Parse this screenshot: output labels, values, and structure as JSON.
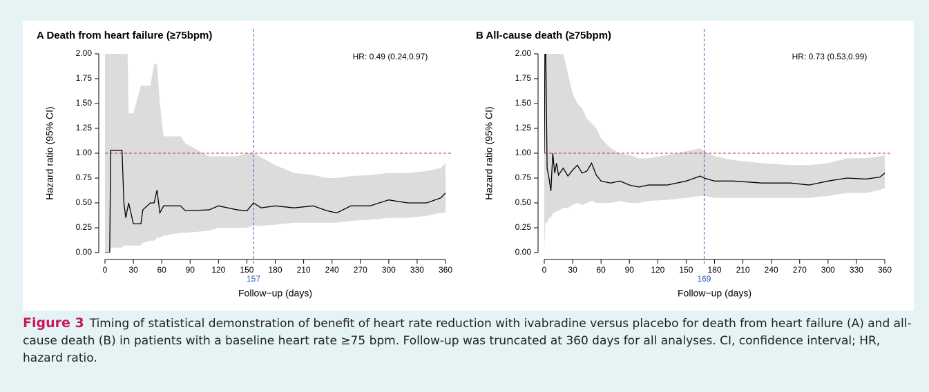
{
  "chart_data": [
    {
      "type": "line",
      "title": "A Death from heart failure (≥75bpm)",
      "annotation": "HR: 0.49 (0.24,0.97)",
      "x_label": "Follow−up (days)",
      "y_label": "Hazard ratio (95% CI)",
      "xlim": [
        0,
        360
      ],
      "ylim": [
        0,
        2
      ],
      "xticks": [
        0,
        30,
        60,
        90,
        120,
        150,
        180,
        210,
        240,
        270,
        300,
        330,
        360
      ],
      "yticks": [
        {
          "value": 0,
          "label": "0.00"
        },
        {
          "value": 0.25,
          "label": "0.25"
        },
        {
          "value": 0.5,
          "label": "0.50"
        },
        {
          "value": 0.75,
          "label": "0.75"
        },
        {
          "value": 1,
          "label": "1.00"
        },
        {
          "value": 1.25,
          "label": "1.25"
        },
        {
          "value": 1.5,
          "label": "1.50"
        },
        {
          "value": 1.75,
          "label": "1.75"
        },
        {
          "value": 2,
          "label": "2.00"
        }
      ],
      "ref_line": 1,
      "marker": 157,
      "color": "#000000",
      "band_color": "#dcdcdc",
      "ref_color": "#d22b2b",
      "marker_color": "#3a5bb8",
      "x": [
        0,
        5,
        6,
        18,
        20,
        22,
        25,
        30,
        38,
        40,
        48,
        52,
        55,
        58,
        62,
        80,
        85,
        110,
        120,
        140,
        150,
        157,
        165,
        180,
        200,
        220,
        235,
        245,
        260,
        280,
        300,
        320,
        340,
        355,
        360
      ],
      "values": [
        0,
        0,
        1.03,
        1.03,
        0.5,
        0.35,
        0.5,
        0.29,
        0.29,
        0.43,
        0.5,
        0.5,
        0.63,
        0.4,
        0.47,
        0.47,
        0.42,
        0.43,
        0.47,
        0.43,
        0.42,
        0.5,
        0.45,
        0.47,
        0.45,
        0.47,
        0.42,
        0.4,
        0.47,
        0.47,
        0.53,
        0.5,
        0.5,
        0.55,
        0.6
      ],
      "ci_lower": [
        0,
        0,
        0.05,
        0.05,
        0.07,
        0.07,
        0.07,
        0.07,
        0.07,
        0.1,
        0.12,
        0.12,
        0.15,
        0.15,
        0.17,
        0.2,
        0.2,
        0.22,
        0.25,
        0.25,
        0.25,
        0.27,
        0.27,
        0.28,
        0.3,
        0.3,
        0.3,
        0.3,
        0.32,
        0.33,
        0.35,
        0.35,
        0.37,
        0.4,
        0.4
      ],
      "ci_upper": [
        3,
        3,
        3,
        3,
        3,
        3,
        1.4,
        1.4,
        1.68,
        1.68,
        1.68,
        1.9,
        1.9,
        1.5,
        1.17,
        1.17,
        1.1,
        0.97,
        0.97,
        0.97,
        1.0,
        1.0,
        0.96,
        0.88,
        0.8,
        0.78,
        0.75,
        0.75,
        0.77,
        0.78,
        0.8,
        0.8,
        0.82,
        0.85,
        0.9
      ]
    },
    {
      "type": "line",
      "title": "B All-cause death (≥75bpm)",
      "annotation": "HR: 0.73 (0.53,0.99)",
      "x_label": "Follow−up (days)",
      "y_label": "Hazard ratio (95% CI)",
      "xlim": [
        0,
        360
      ],
      "ylim": [
        0,
        2
      ],
      "xticks": [
        0,
        30,
        60,
        90,
        120,
        150,
        180,
        210,
        240,
        270,
        300,
        330,
        360
      ],
      "yticks": [
        {
          "value": 0,
          "label": "0.00"
        },
        {
          "value": 0.25,
          "label": "0.25"
        },
        {
          "value": 0.5,
          "label": "0.50"
        },
        {
          "value": 0.75,
          "label": "0.75"
        },
        {
          "value": 1,
          "label": "1.00"
        },
        {
          "value": 1.25,
          "label": "1.25"
        },
        {
          "value": 1.5,
          "label": "1.50"
        },
        {
          "value": 1.75,
          "label": "1.75"
        },
        {
          "value": 2,
          "label": "2.00"
        }
      ],
      "ref_line": 1,
      "marker": 169,
      "color": "#000000",
      "band_color": "#dcdcdc",
      "ref_color": "#d22b2b",
      "marker_color": "#3a5bb8",
      "x": [
        0,
        1,
        3,
        5,
        7,
        9,
        11,
        13,
        15,
        20,
        25,
        30,
        35,
        40,
        45,
        50,
        55,
        60,
        70,
        80,
        90,
        100,
        110,
        130,
        150,
        165,
        169,
        180,
        200,
        230,
        260,
        280,
        300,
        320,
        340,
        355,
        360
      ],
      "values": [
        1.0,
        2.5,
        0.85,
        0.75,
        0.62,
        1.0,
        0.8,
        0.9,
        0.78,
        0.85,
        0.77,
        0.83,
        0.88,
        0.8,
        0.82,
        0.9,
        0.78,
        0.72,
        0.7,
        0.72,
        0.68,
        0.66,
        0.68,
        0.68,
        0.72,
        0.77,
        0.75,
        0.72,
        0.72,
        0.7,
        0.7,
        0.68,
        0.72,
        0.75,
        0.74,
        0.76,
        0.8
      ],
      "ci_lower": [
        0,
        0.3,
        0.3,
        0.35,
        0.35,
        0.4,
        0.4,
        0.42,
        0.42,
        0.45,
        0.45,
        0.48,
        0.5,
        0.48,
        0.5,
        0.52,
        0.5,
        0.5,
        0.5,
        0.52,
        0.5,
        0.5,
        0.52,
        0.53,
        0.55,
        0.57,
        0.57,
        0.55,
        0.55,
        0.55,
        0.55,
        0.55,
        0.57,
        0.6,
        0.6,
        0.63,
        0.65
      ],
      "ci_upper": [
        3,
        3,
        3,
        3,
        3,
        3,
        3,
        3,
        3,
        2.0,
        1.8,
        1.6,
        1.5,
        1.45,
        1.35,
        1.3,
        1.25,
        1.15,
        1.05,
        1.0,
        0.98,
        0.95,
        0.95,
        0.98,
        1.02,
        1.05,
        1.02,
        0.97,
        0.93,
        0.9,
        0.88,
        0.88,
        0.9,
        0.95,
        0.95,
        0.97,
        0.98
      ]
    }
  ],
  "caption": {
    "label": "Figure 3",
    "text": "Timing of statistical demonstration of benefit of heart rate reduction with ivabradine versus placebo for death from heart failure (A) and all-cause death (B) in patients with a baseline heart rate ≥75 bpm. Follow-up was truncated at 360 days for all analyses. CI, confidence interval; HR, hazard ratio."
  }
}
